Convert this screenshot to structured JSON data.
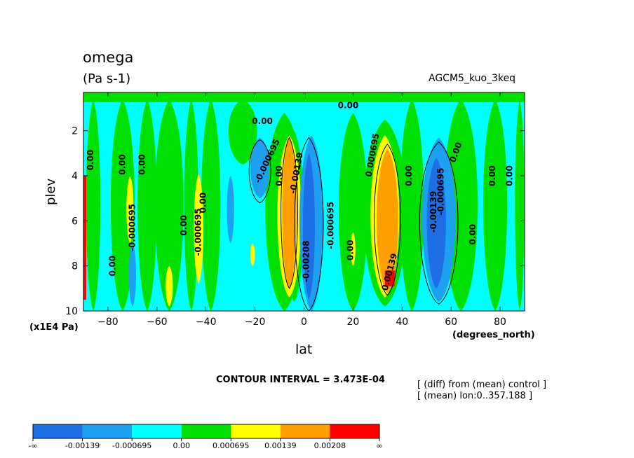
{
  "chart_data": {
    "type": "heatmap",
    "title": "omega",
    "units": "(Pa s-1)",
    "run_label": "AGCM5_kuo_3keq",
    "xlabel": "lat",
    "ylabel": "plev",
    "x_unit": "(degrees_north)",
    "y_unit": "(x1E4 Pa)",
    "xlim": [
      -90,
      90
    ],
    "ylim": [
      10,
      0.3
    ],
    "x_ticks": [
      -80,
      -60,
      -40,
      -20,
      0,
      20,
      40,
      60,
      80
    ],
    "y_ticks": [
      2,
      4,
      6,
      8,
      10
    ],
    "contour_interval_text": "CONTOUR INTERVAL = 3.473E-04",
    "notes": [
      "[ (diff) from (mean) control ]",
      "[ (mean) lon:0..357.188 ]"
    ],
    "colorbar": {
      "colors": [
        "#1e6ee6",
        "#1ea0f0",
        "#00ffff",
        "#00e000",
        "#ffff00",
        "#ffa000",
        "#ff0000"
      ],
      "labels": [
        "-∞",
        "-0.00139",
        "-0.000695",
        "0.00",
        "0.000695",
        "0.00139",
        "0.00208",
        "∞"
      ]
    },
    "contour_labels": [
      {
        "text": "0.00",
        "lat": -86,
        "plev": 3.3,
        "rot": -90
      },
      {
        "text": "0.00",
        "lat": -73,
        "plev": 3.5,
        "rot": -90
      },
      {
        "text": "-0.000695",
        "lat": -69,
        "plev": 6.3,
        "rot": -90
      },
      {
        "text": "0.00",
        "lat": -65,
        "plev": 3.5,
        "rot": -90
      },
      {
        "text": "0.00",
        "lat": -77,
        "plev": 8.0,
        "rot": -90
      },
      {
        "text": "0.00",
        "lat": -48,
        "plev": 6.2,
        "rot": -90
      },
      {
        "text": "-0.000695",
        "lat": -42,
        "plev": 6.5,
        "rot": -90
      },
      {
        "text": "0.00",
        "lat": -40,
        "plev": 5.2,
        "rot": -90
      },
      {
        "text": "0.00",
        "lat": -17,
        "plev": 1.7,
        "rot": 0
      },
      {
        "text": "-0.000695",
        "lat": -14,
        "plev": 3.4,
        "rot": -65
      },
      {
        "text": "0.00",
        "lat": -9,
        "plev": 4.0,
        "rot": -90
      },
      {
        "text": "-0.00139",
        "lat": -2,
        "plev": 3.9,
        "rot": -80
      },
      {
        "text": "-0.00208",
        "lat": 2,
        "plev": 7.8,
        "rot": -90
      },
      {
        "text": "0.00",
        "lat": 18,
        "plev": 1.0,
        "rot": 0
      },
      {
        "text": "-0.000695",
        "lat": 12,
        "plev": 6.2,
        "rot": -90
      },
      {
        "text": "0.00",
        "lat": 20,
        "plev": 7.3,
        "rot": -90
      },
      {
        "text": "0.000695",
        "lat": 29,
        "plev": 3.1,
        "rot": -80
      },
      {
        "text": "0.00139",
        "lat": 36,
        "plev": 8.3,
        "rot": -75
      },
      {
        "text": "0.00",
        "lat": 44,
        "plev": 4.0,
        "rot": -90
      },
      {
        "text": "-0.00139",
        "lat": 54,
        "plev": 5.6,
        "rot": -90
      },
      {
        "text": "-0.000695",
        "lat": 57,
        "plev": 4.7,
        "rot": -90
      },
      {
        "text": "0.00",
        "lat": 63,
        "plev": 3.0,
        "rot": -70
      },
      {
        "text": "0.00",
        "lat": 70,
        "plev": 6.6,
        "rot": -90
      },
      {
        "text": "0.00",
        "lat": 78,
        "plev": 4.0,
        "rot": -90
      },
      {
        "text": "0.00",
        "lat": 85,
        "plev": 4.0,
        "rot": -90
      }
    ]
  }
}
